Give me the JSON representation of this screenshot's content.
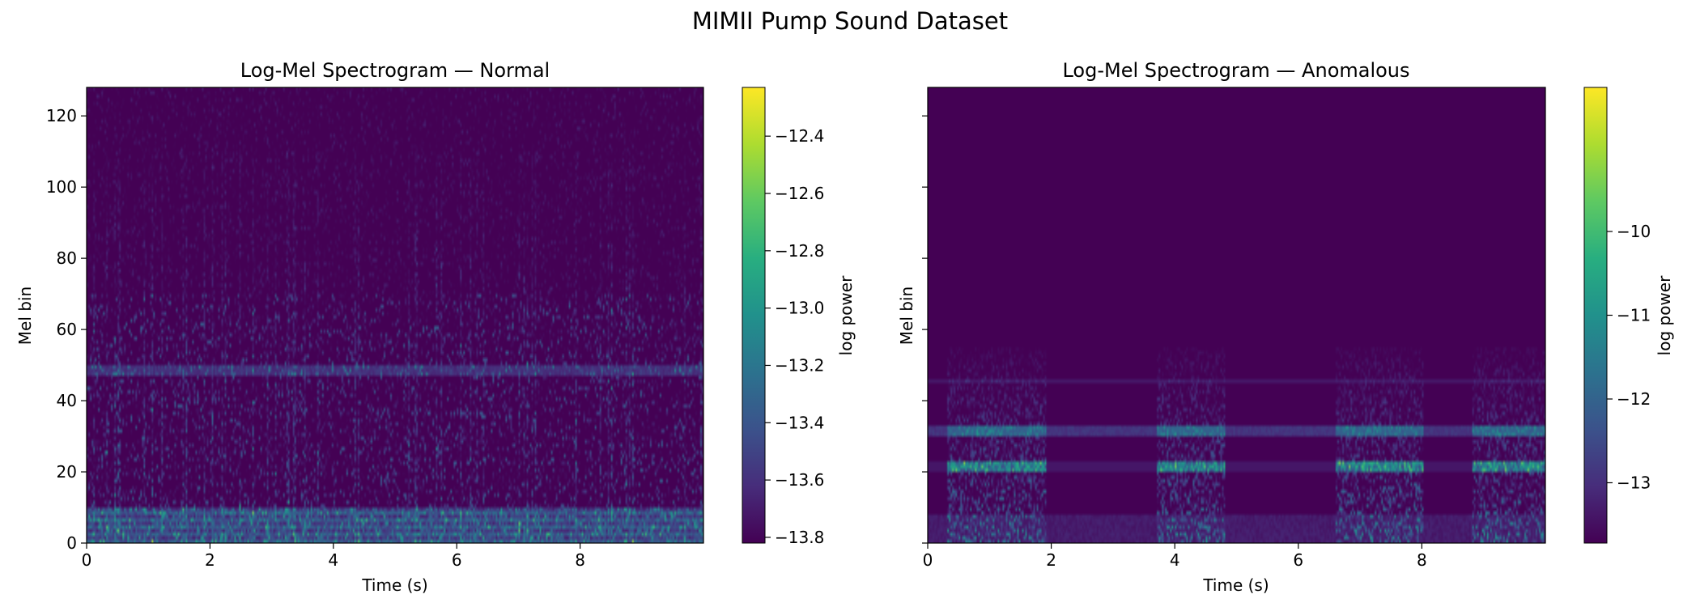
{
  "figure": {
    "title": "MIMII Pump Sound Dataset"
  },
  "chart_data": [
    {
      "type": "heatmap",
      "title": "Log-Mel Spectrogram — Normal",
      "xlabel": "Time (s)",
      "ylabel": "Mel bin",
      "xlim": [
        0,
        10
      ],
      "ylim": [
        0,
        128
      ],
      "x_ticks": [
        0,
        2,
        4,
        6,
        8
      ],
      "y_ticks": [
        0,
        20,
        40,
        60,
        80,
        100,
        120
      ],
      "colormap": "viridis",
      "colorbar": {
        "label": "log power",
        "range": [
          -13.82,
          -12.23
        ],
        "ticks": [
          -12.4,
          -12.6,
          -12.8,
          -13.0,
          -13.2,
          -13.4,
          -13.6,
          -13.8
        ],
        "tick_labels": [
          "−12.4",
          "−12.6",
          "−12.8",
          "−13.0",
          "−13.2",
          "−13.4",
          "−13.6",
          "−13.8"
        ]
      },
      "features": {
        "baseline": -13.82,
        "low_band_bins": [
          0,
          10
        ],
        "harmonic_line_bins": [
          48
        ],
        "sparse_vertical_streaks": true
      }
    },
    {
      "type": "heatmap",
      "title": "Log-Mel Spectrogram — Anomalous",
      "xlabel": "Time (s)",
      "ylabel": "Mel bin",
      "xlim": [
        0,
        10
      ],
      "ylim": [
        0,
        128
      ],
      "x_ticks": [
        0,
        2,
        4,
        6,
        8
      ],
      "shared_y": true,
      "colormap": "viridis",
      "colorbar": {
        "label": "log power",
        "range": [
          -13.72,
          -8.28
        ],
        "ticks": [
          -10,
          -11,
          -12,
          -13
        ],
        "tick_labels": [
          "−10",
          "−11",
          "−12",
          "−13"
        ]
      },
      "features": {
        "baseline": -13.72,
        "harmonic_line_bins": [
          21,
          31,
          45
        ],
        "bursts_s": [
          [
            0.3,
            1.9
          ],
          [
            3.7,
            4.8
          ],
          [
            6.6,
            8.0
          ],
          [
            8.8,
            10.0
          ]
        ]
      }
    }
  ]
}
